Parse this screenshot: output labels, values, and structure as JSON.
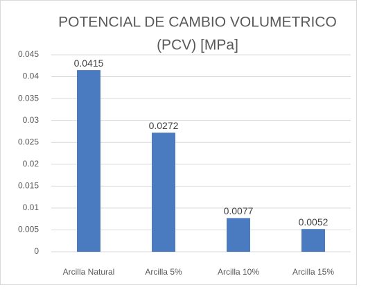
{
  "chart_data": {
    "type": "bar",
    "title": [
      "POTENCIAL DE CAMBIO VOLUMETRICO",
      "(PCV)  [MPa]"
    ],
    "categories": [
      "Arcilla Natural",
      "Arcilla 5%",
      "Arcilla 10%",
      "Arcilla 15%"
    ],
    "values": [
      0.0415,
      0.0272,
      0.0077,
      0.0052
    ],
    "color": "#4a7abf",
    "ylim": [
      0,
      0.045
    ],
    "yticks": [
      0,
      0.005,
      0.01,
      0.015,
      0.02,
      0.025,
      0.03,
      0.035,
      0.04,
      0.045
    ],
    "grid": true
  }
}
